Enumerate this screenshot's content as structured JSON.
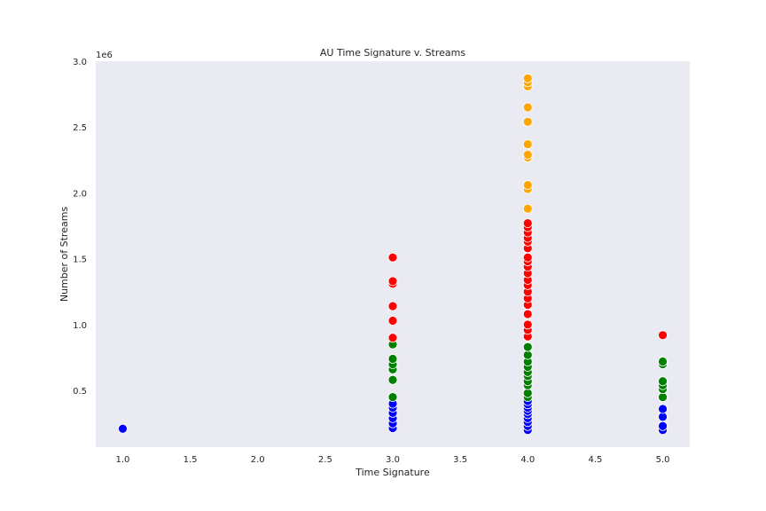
{
  "chart_data": {
    "type": "scatter",
    "title": "AU Time Signature v. Streams",
    "xlabel": "Time Signature",
    "ylabel": "Number of Streams",
    "y_offset_label": "1e6",
    "xlim": [
      0.8,
      5.2
    ],
    "ylim": [
      70000,
      3000000
    ],
    "grid": false,
    "x_ticks": [
      1.0,
      1.5,
      2.0,
      2.5,
      3.0,
      3.5,
      4.0,
      4.5,
      5.0
    ],
    "x_tick_labels": [
      "1.0",
      "1.5",
      "2.0",
      "2.5",
      "3.0",
      "3.5",
      "4.0",
      "4.5",
      "5.0"
    ],
    "y_ticks": [
      500000,
      1000000,
      1500000,
      2000000,
      2500000,
      3000000
    ],
    "y_tick_labels": [
      "0.5",
      "1.0",
      "1.5",
      "2.0",
      "2.5",
      "3.0"
    ],
    "colors": {
      "blue": "#0000ff",
      "green": "#008000",
      "red": "#ff0000",
      "orange": "#ffa500",
      "background": "#eaeaf2"
    },
    "points": [
      {
        "x": 1.0,
        "y": 210000,
        "color": "blue"
      },
      {
        "x": 3.0,
        "y": 215000,
        "color": "blue"
      },
      {
        "x": 3.0,
        "y": 250000,
        "color": "blue"
      },
      {
        "x": 3.0,
        "y": 290000,
        "color": "blue"
      },
      {
        "x": 3.0,
        "y": 330000,
        "color": "blue"
      },
      {
        "x": 3.0,
        "y": 370000,
        "color": "blue"
      },
      {
        "x": 3.0,
        "y": 400000,
        "color": "blue"
      },
      {
        "x": 3.0,
        "y": 450000,
        "color": "green"
      },
      {
        "x": 3.0,
        "y": 580000,
        "color": "green"
      },
      {
        "x": 3.0,
        "y": 660000,
        "color": "green"
      },
      {
        "x": 3.0,
        "y": 700000,
        "color": "green"
      },
      {
        "x": 3.0,
        "y": 740000,
        "color": "green"
      },
      {
        "x": 3.0,
        "y": 850000,
        "color": "green"
      },
      {
        "x": 3.0,
        "y": 900000,
        "color": "red"
      },
      {
        "x": 3.0,
        "y": 1030000,
        "color": "red"
      },
      {
        "x": 3.0,
        "y": 1140000,
        "color": "red"
      },
      {
        "x": 3.0,
        "y": 1310000,
        "color": "red"
      },
      {
        "x": 3.0,
        "y": 1330000,
        "color": "red"
      },
      {
        "x": 3.0,
        "y": 1510000,
        "color": "red"
      },
      {
        "x": 4.0,
        "y": 200000,
        "color": "blue"
      },
      {
        "x": 4.0,
        "y": 230000,
        "color": "blue"
      },
      {
        "x": 4.0,
        "y": 260000,
        "color": "blue"
      },
      {
        "x": 4.0,
        "y": 290000,
        "color": "blue"
      },
      {
        "x": 4.0,
        "y": 320000,
        "color": "blue"
      },
      {
        "x": 4.0,
        "y": 345000,
        "color": "blue"
      },
      {
        "x": 4.0,
        "y": 370000,
        "color": "blue"
      },
      {
        "x": 4.0,
        "y": 395000,
        "color": "blue"
      },
      {
        "x": 4.0,
        "y": 420000,
        "color": "blue"
      },
      {
        "x": 4.0,
        "y": 450000,
        "color": "green"
      },
      {
        "x": 4.0,
        "y": 480000,
        "color": "green"
      },
      {
        "x": 4.0,
        "y": 540000,
        "color": "green"
      },
      {
        "x": 4.0,
        "y": 570000,
        "color": "green"
      },
      {
        "x": 4.0,
        "y": 610000,
        "color": "green"
      },
      {
        "x": 4.0,
        "y": 640000,
        "color": "green"
      },
      {
        "x": 4.0,
        "y": 680000,
        "color": "green"
      },
      {
        "x": 4.0,
        "y": 720000,
        "color": "green"
      },
      {
        "x": 4.0,
        "y": 770000,
        "color": "green"
      },
      {
        "x": 4.0,
        "y": 830000,
        "color": "green"
      },
      {
        "x": 4.0,
        "y": 910000,
        "color": "red"
      },
      {
        "x": 4.0,
        "y": 960000,
        "color": "red"
      },
      {
        "x": 4.0,
        "y": 1000000,
        "color": "red"
      },
      {
        "x": 4.0,
        "y": 1080000,
        "color": "red"
      },
      {
        "x": 4.0,
        "y": 1150000,
        "color": "red"
      },
      {
        "x": 4.0,
        "y": 1200000,
        "color": "red"
      },
      {
        "x": 4.0,
        "y": 1250000,
        "color": "red"
      },
      {
        "x": 4.0,
        "y": 1300000,
        "color": "red"
      },
      {
        "x": 4.0,
        "y": 1340000,
        "color": "red"
      },
      {
        "x": 4.0,
        "y": 1390000,
        "color": "red"
      },
      {
        "x": 4.0,
        "y": 1440000,
        "color": "red"
      },
      {
        "x": 4.0,
        "y": 1480000,
        "color": "red"
      },
      {
        "x": 4.0,
        "y": 1510000,
        "color": "red"
      },
      {
        "x": 4.0,
        "y": 1580000,
        "color": "red"
      },
      {
        "x": 4.0,
        "y": 1630000,
        "color": "red"
      },
      {
        "x": 4.0,
        "y": 1660000,
        "color": "red"
      },
      {
        "x": 4.0,
        "y": 1700000,
        "color": "red"
      },
      {
        "x": 4.0,
        "y": 1740000,
        "color": "red"
      },
      {
        "x": 4.0,
        "y": 1770000,
        "color": "red"
      },
      {
        "x": 4.0,
        "y": 1880000,
        "color": "orange"
      },
      {
        "x": 4.0,
        "y": 2030000,
        "color": "orange"
      },
      {
        "x": 4.0,
        "y": 2060000,
        "color": "orange"
      },
      {
        "x": 4.0,
        "y": 2270000,
        "color": "orange"
      },
      {
        "x": 4.0,
        "y": 2290000,
        "color": "orange"
      },
      {
        "x": 4.0,
        "y": 2370000,
        "color": "orange"
      },
      {
        "x": 4.0,
        "y": 2540000,
        "color": "orange"
      },
      {
        "x": 4.0,
        "y": 2650000,
        "color": "orange"
      },
      {
        "x": 4.0,
        "y": 2810000,
        "color": "orange"
      },
      {
        "x": 4.0,
        "y": 2840000,
        "color": "orange"
      },
      {
        "x": 4.0,
        "y": 2870000,
        "color": "orange"
      },
      {
        "x": 5.0,
        "y": 200000,
        "color": "blue"
      },
      {
        "x": 5.0,
        "y": 230000,
        "color": "blue"
      },
      {
        "x": 5.0,
        "y": 300000,
        "color": "blue"
      },
      {
        "x": 5.0,
        "y": 360000,
        "color": "blue"
      },
      {
        "x": 5.0,
        "y": 450000,
        "color": "green"
      },
      {
        "x": 5.0,
        "y": 510000,
        "color": "green"
      },
      {
        "x": 5.0,
        "y": 540000,
        "color": "green"
      },
      {
        "x": 5.0,
        "y": 570000,
        "color": "green"
      },
      {
        "x": 5.0,
        "y": 700000,
        "color": "green"
      },
      {
        "x": 5.0,
        "y": 720000,
        "color": "green"
      },
      {
        "x": 5.0,
        "y": 920000,
        "color": "red"
      }
    ]
  }
}
